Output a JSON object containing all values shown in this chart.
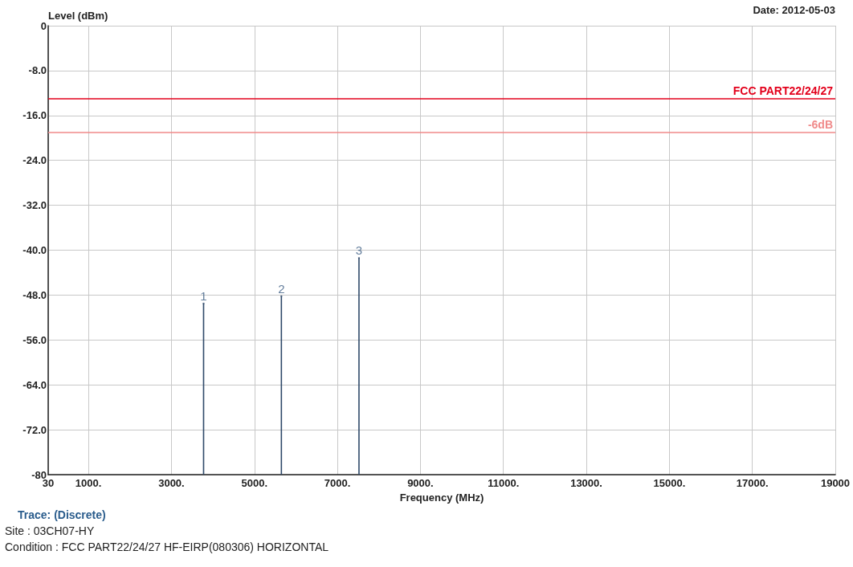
{
  "chart_data": {
    "type": "lollipop",
    "ylabel": "Level (dBm)",
    "xlabel": "Frequency (MHz)",
    "subtitle": "Date: 2012-05-03",
    "annotations": [
      {
        "text": "1",
        "x": 3775,
        "y": -49.5
      },
      {
        "text": "2",
        "x": 5650,
        "y": -48.2
      },
      {
        "text": "3",
        "x": 7520,
        "y": -41.4
      },
      "Trace: (Discrete)",
      "Site : 03CH07-HY",
      "Condition : FCC PART22/24/27 HF-EIRP(080306) HORIZONTAL"
    ],
    "x": [
      3775,
      5650,
      7520
    ],
    "series": [
      {
        "color": "#2f4a6a",
        "values": [
          -49.5,
          -48.2,
          -41.4
        ]
      }
    ],
    "xlim": [
      30,
      19000
    ],
    "xticks": [
      30,
      {
        "value": 1000,
        "label": "1000."
      },
      {
        "value": 3000,
        "label": "3000."
      },
      {
        "value": 5000,
        "label": "5000."
      },
      {
        "value": 7000,
        "label": "7000."
      },
      {
        "value": 9000,
        "label": "9000."
      },
      {
        "value": 11000,
        "label": "11000."
      },
      {
        "value": 13000,
        "label": "13000."
      },
      {
        "value": 15000,
        "label": "15000."
      },
      {
        "value": 17000,
        "label": "17000."
      },
      19000
    ],
    "ylim": [
      -80,
      0
    ],
    "yticks": [
      -80,
      {
        "value": -72,
        "label": "-72.0"
      },
      {
        "value": -64,
        "label": "-64.0"
      },
      {
        "value": -56,
        "label": "-56.0"
      },
      {
        "value": -48,
        "label": "-48.0"
      },
      {
        "value": -40,
        "label": "-40.0"
      },
      {
        "value": -32,
        "label": "-32.0"
      },
      {
        "value": -24,
        "label": "-24.0"
      },
      {
        "value": -16,
        "label": "-16.0"
      },
      {
        "value": -8,
        "label": "-8.0"
      },
      0
    ],
    "ref_lines": [
      {
        "axis": "y",
        "value": -13,
        "label": "FCC PART22/24/27",
        "color": "#e3001b"
      },
      {
        "axis": "y",
        "value": -19,
        "label": "-6dB",
        "color": "#f08a8a"
      }
    ],
    "grid": true
  }
}
